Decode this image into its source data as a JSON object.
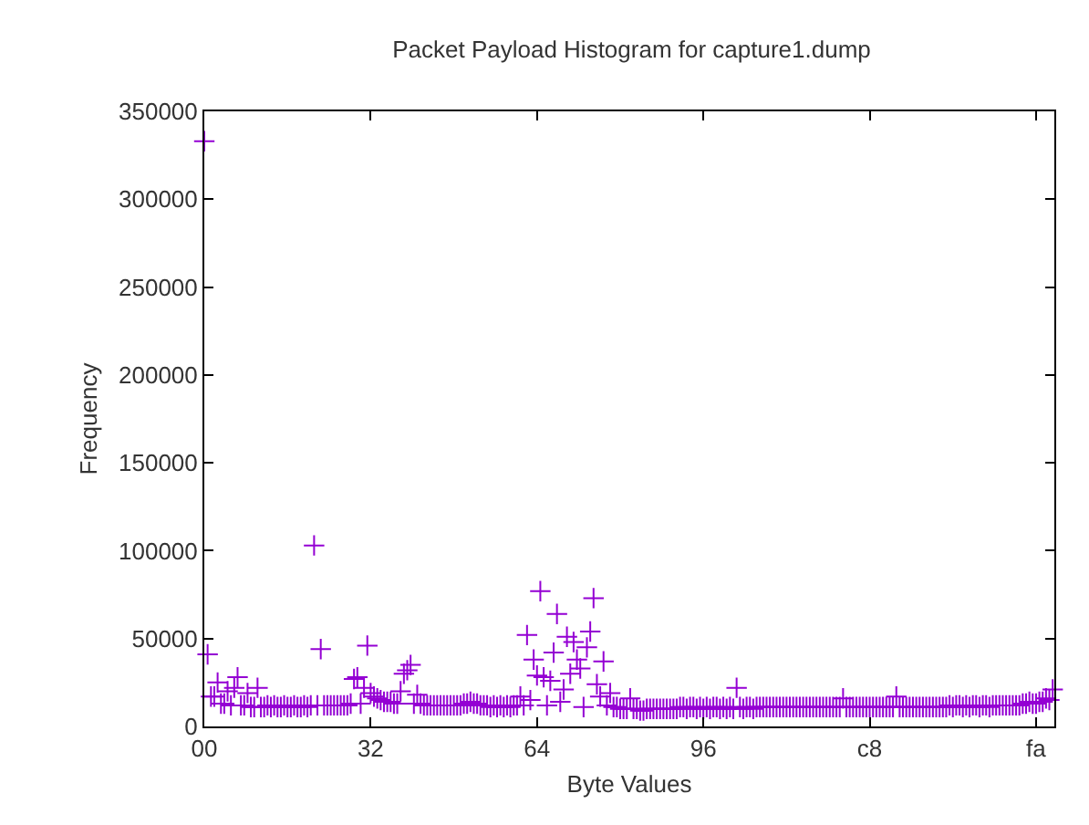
{
  "chart_data": {
    "type": "scatter",
    "title": "Packet Payload Histogram for capture1.dump",
    "xlabel": "Byte Values",
    "ylabel": "Frequency",
    "categories": [
      "00",
      null,
      null,
      null,
      null,
      null,
      null,
      null,
      null,
      null,
      null,
      null,
      null,
      null,
      null,
      null,
      null,
      null,
      null,
      null,
      null,
      null,
      null,
      null,
      null,
      null,
      null,
      null,
      null,
      null,
      null,
      null,
      null,
      null,
      null,
      null,
      null,
      null,
      null,
      null,
      null,
      null,
      null,
      null,
      null,
      null,
      null,
      null,
      null,
      null,
      "32",
      null,
      null,
      null,
      null,
      null,
      null,
      null,
      null,
      null,
      null,
      null,
      null,
      null,
      null,
      null,
      null,
      null,
      null,
      null,
      null,
      null,
      null,
      null,
      null,
      null,
      null,
      null,
      null,
      null,
      null,
      null,
      null,
      null,
      null,
      null,
      null,
      null,
      null,
      null,
      null,
      null,
      null,
      null,
      null,
      null,
      null,
      null,
      null,
      null,
      "64",
      null,
      null,
      null,
      null,
      null,
      null,
      null,
      null,
      null,
      null,
      null,
      null,
      null,
      null,
      null,
      null,
      null,
      null,
      null,
      null,
      null,
      null,
      null,
      null,
      null,
      null,
      null,
      null,
      null,
      null,
      null,
      null,
      null,
      null,
      null,
      null,
      null,
      null,
      null,
      null,
      null,
      null,
      null,
      null,
      null,
      null,
      null,
      null,
      null,
      "96",
      null,
      null,
      null,
      null,
      null,
      null,
      null,
      null,
      null,
      null,
      null,
      null,
      null,
      null,
      null,
      null,
      null,
      null,
      null,
      null,
      null,
      null,
      null,
      null,
      null,
      null,
      null,
      null,
      null,
      null,
      null,
      null,
      null,
      null,
      null,
      null,
      null,
      null,
      null,
      null,
      null,
      null,
      null,
      null,
      null,
      null,
      null,
      null,
      null,
      "c8",
      null,
      null,
      null,
      null,
      null,
      null,
      null,
      null,
      null,
      null,
      null,
      null,
      null,
      null,
      null,
      null,
      null,
      null,
      null,
      null,
      null,
      null,
      null,
      null,
      null,
      null,
      null,
      null,
      null,
      null,
      null,
      null,
      null,
      null,
      null,
      null,
      null,
      null,
      null,
      null,
      null,
      null,
      null,
      null,
      null,
      null,
      null,
      null,
      null,
      "fa",
      null,
      null,
      null,
      null,
      null
    ],
    "series": [
      {
        "color": "#9400d3",
        "values": [
          333000,
          41000,
          17000,
          17000,
          25000,
          13000,
          13000,
          20000,
          12000,
          22000,
          28000,
          12000,
          12000,
          19000,
          11000,
          11000,
          22000,
          11000,
          11000,
          12000,
          11000,
          12000,
          11000,
          11000,
          12000,
          11000,
          11000,
          12000,
          11000,
          11000,
          12000,
          11000,
          12000,
          103000,
          12000,
          44000,
          12000,
          12000,
          12000,
          12000,
          12000,
          12000,
          12000,
          12000,
          13000,
          27000,
          28000,
          13000,
          22000,
          46000,
          19000,
          17000,
          16000,
          15000,
          14000,
          14000,
          14000,
          13000,
          13000,
          20000,
          30000,
          32000,
          35000,
          13000,
          18000,
          13000,
          12000,
          12000,
          12000,
          12000,
          12000,
          12000,
          12000,
          12000,
          12000,
          12000,
          12000,
          12000,
          13000,
          13000,
          14000,
          13000,
          13000,
          12000,
          12000,
          12000,
          11000,
          12000,
          11000,
          12000,
          11000,
          12000,
          11000,
          12000,
          12000,
          17000,
          12000,
          52000,
          15000,
          38000,
          29000,
          77000,
          28000,
          12000,
          26000,
          42000,
          64000,
          14000,
          21000,
          51000,
          30000,
          48000,
          38000,
          33000,
          11000,
          45000,
          54000,
          73000,
          24000,
          17000,
          37000,
          12000,
          19000,
          11000,
          11000,
          10000,
          10000,
          10000,
          16000,
          10000,
          10000,
          9000,
          9000,
          10000,
          10000,
          10000,
          10000,
          10000,
          10000,
          10000,
          10000,
          10000,
          10000,
          11000,
          11000,
          10000,
          11000,
          11000,
          10000,
          11000,
          10000,
          11000,
          10000,
          11000,
          11000,
          10000,
          11000,
          10000,
          11000,
          10000,
          22000,
          11000,
          10000,
          11000,
          11000,
          10000,
          11000,
          11000,
          11000,
          11000,
          11000,
          11000,
          11000,
          11000,
          11000,
          11000,
          11000,
          11000,
          11000,
          11000,
          11000,
          11000,
          11000,
          11000,
          11000,
          11000,
          11000,
          11000,
          11000,
          11000,
          11000,
          11000,
          16000,
          11000,
          11000,
          11000,
          11000,
          11000,
          11000,
          11000,
          11000,
          11000,
          11000,
          11000,
          11000,
          11000,
          11000,
          11000,
          17000,
          11000,
          11000,
          11000,
          11000,
          11000,
          11000,
          11000,
          11000,
          11000,
          11000,
          11000,
          11000,
          11000,
          11000,
          11000,
          12000,
          11000,
          12000,
          12000,
          11000,
          12000,
          11000,
          12000,
          12000,
          11000,
          12000,
          12000,
          11000,
          12000,
          12000,
          12000,
          12000,
          12000,
          12000,
          12000,
          12000,
          12000,
          13000,
          13000,
          14000,
          13000,
          13000,
          14000,
          14000,
          16000,
          15000,
          21000
        ]
      }
    ],
    "marker": "cross",
    "ylim": [
      0,
      350000
    ],
    "yticks": [
      0,
      50000,
      100000,
      150000,
      200000,
      250000,
      300000,
      350000
    ]
  }
}
